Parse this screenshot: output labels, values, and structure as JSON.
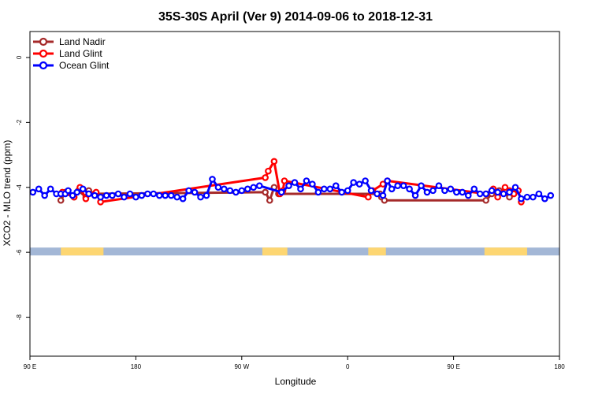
{
  "chart_data": {
    "type": "line",
    "title": "35S-30S April (Ver 9)   2014-09-06 to 2018-12-31",
    "xlabel": "Longitude",
    "ylabel": "XCO2 - MLO trend (ppm)",
    "xlim": [
      0,
      360
    ],
    "ylim": [
      -9.2,
      0.8
    ],
    "xticks": [
      {
        "v": 0,
        "label": "90 E"
      },
      {
        "v": 72,
        "label": "180"
      },
      {
        "v": 144,
        "label": "90 W"
      },
      {
        "v": 216,
        "label": "0"
      },
      {
        "v": 288,
        "label": "90 E"
      },
      {
        "v": 360,
        "label": "180"
      }
    ],
    "yticks": [
      0,
      -2,
      -4,
      -6,
      -8
    ],
    "legend_position": "top-left",
    "grid": false,
    "land_band": {
      "y": -6,
      "ocean_color": "#a3b7d6",
      "land_color": "#fdd672",
      "land_spans": [
        [
          21,
          50
        ],
        [
          158,
          175
        ],
        [
          230,
          242
        ],
        [
          309,
          338
        ]
      ]
    },
    "series": [
      {
        "name": "Land Nadir",
        "color": "#a52a2a",
        "points": [
          [
            21,
            -4.4
          ],
          [
            24,
            -4.15
          ],
          [
            30,
            -4.3
          ],
          [
            33,
            -4.1
          ],
          [
            38,
            -4.3
          ],
          [
            40,
            -4.1
          ],
          [
            44,
            -4.2
          ],
          [
            160,
            -4.15
          ],
          [
            163,
            -4.4
          ],
          [
            166,
            -4.0
          ],
          [
            169,
            -4.2
          ],
          [
            238,
            -4.2
          ],
          [
            239,
            -4.3
          ],
          [
            241,
            -4.4
          ],
          [
            310,
            -4.4
          ],
          [
            314,
            -4.2
          ],
          [
            319,
            -4.1
          ],
          [
            326,
            -4.3
          ],
          [
            329,
            -4.2
          ],
          [
            331,
            -4.1
          ]
        ]
      },
      {
        "name": "Land Glint",
        "color": "#ff0000",
        "points": [
          [
            22,
            -4.15
          ],
          [
            30,
            -4.3
          ],
          [
            34,
            -4.0
          ],
          [
            38,
            -4.35
          ],
          [
            40,
            -4.2
          ],
          [
            45,
            -4.15
          ],
          [
            48,
            -4.45
          ],
          [
            160,
            -3.7
          ],
          [
            162,
            -3.5
          ],
          [
            166,
            -3.2
          ],
          [
            170,
            -4.2
          ],
          [
            172,
            -4.1
          ],
          [
            173,
            -3.8
          ],
          [
            230,
            -4.3
          ],
          [
            233,
            -4.1
          ],
          [
            240,
            -3.9
          ],
          [
            243,
            -3.8
          ],
          [
            310,
            -4.2
          ],
          [
            315,
            -4.05
          ],
          [
            318,
            -4.3
          ],
          [
            323,
            -4.0
          ],
          [
            326,
            -4.1
          ],
          [
            329,
            -4.2
          ],
          [
            332,
            -4.1
          ],
          [
            334,
            -4.45
          ]
        ]
      },
      {
        "name": "Ocean Glint",
        "color": "#0000ff",
        "points": [
          [
            2,
            -4.15
          ],
          [
            6,
            -4.05
          ],
          [
            10,
            -4.25
          ],
          [
            14,
            -4.05
          ],
          [
            18,
            -4.2
          ],
          [
            21,
            -4.2
          ],
          [
            24,
            -4.2
          ],
          [
            26,
            -4.1
          ],
          [
            29,
            -4.25
          ],
          [
            32,
            -4.15
          ],
          [
            36,
            -4.05
          ],
          [
            40,
            -4.2
          ],
          [
            44,
            -4.25
          ],
          [
            48,
            -4.3
          ],
          [
            52,
            -4.25
          ],
          [
            56,
            -4.25
          ],
          [
            60,
            -4.2
          ],
          [
            64,
            -4.3
          ],
          [
            68,
            -4.2
          ],
          [
            72,
            -4.3
          ],
          [
            76,
            -4.25
          ],
          [
            80,
            -4.2
          ],
          [
            84,
            -4.2
          ],
          [
            88,
            -4.25
          ],
          [
            92,
            -4.25
          ],
          [
            96,
            -4.25
          ],
          [
            100,
            -4.3
          ],
          [
            104,
            -4.35
          ],
          [
            108,
            -4.1
          ],
          [
            112,
            -4.15
          ],
          [
            116,
            -4.3
          ],
          [
            120,
            -4.25
          ],
          [
            124,
            -3.75
          ],
          [
            128,
            -4.0
          ],
          [
            132,
            -4.05
          ],
          [
            136,
            -4.1
          ],
          [
            140,
            -4.15
          ],
          [
            144,
            -4.1
          ],
          [
            148,
            -4.05
          ],
          [
            152,
            -4.0
          ],
          [
            156,
            -3.95
          ],
          [
            171,
            -4.15
          ],
          [
            176,
            -3.95
          ],
          [
            180,
            -3.85
          ],
          [
            184,
            -4.05
          ],
          [
            188,
            -3.8
          ],
          [
            192,
            -3.9
          ],
          [
            196,
            -4.15
          ],
          [
            200,
            -4.05
          ],
          [
            204,
            -4.05
          ],
          [
            208,
            -3.95
          ],
          [
            212,
            -4.15
          ],
          [
            216,
            -4.1
          ],
          [
            220,
            -3.85
          ],
          [
            224,
            -3.9
          ],
          [
            228,
            -3.8
          ],
          [
            232,
            -4.1
          ],
          [
            236,
            -4.2
          ],
          [
            240,
            -4.25
          ],
          [
            243,
            -3.8
          ],
          [
            246,
            -4.05
          ],
          [
            250,
            -3.95
          ],
          [
            254,
            -3.95
          ],
          [
            258,
            -4.05
          ],
          [
            262,
            -4.25
          ],
          [
            266,
            -3.95
          ],
          [
            270,
            -4.15
          ],
          [
            274,
            -4.1
          ],
          [
            278,
            -3.95
          ],
          [
            282,
            -4.1
          ],
          [
            286,
            -4.05
          ],
          [
            290,
            -4.15
          ],
          [
            294,
            -4.15
          ],
          [
            298,
            -4.25
          ],
          [
            302,
            -4.05
          ],
          [
            306,
            -4.2
          ],
          [
            310,
            -4.2
          ],
          [
            314,
            -4.1
          ],
          [
            318,
            -4.15
          ],
          [
            322,
            -4.2
          ],
          [
            326,
            -4.15
          ],
          [
            330,
            -4.0
          ],
          [
            334,
            -4.35
          ],
          [
            338,
            -4.3
          ],
          [
            342,
            -4.3
          ],
          [
            346,
            -4.2
          ],
          [
            350,
            -4.35
          ],
          [
            354,
            -4.25
          ]
        ]
      }
    ]
  }
}
